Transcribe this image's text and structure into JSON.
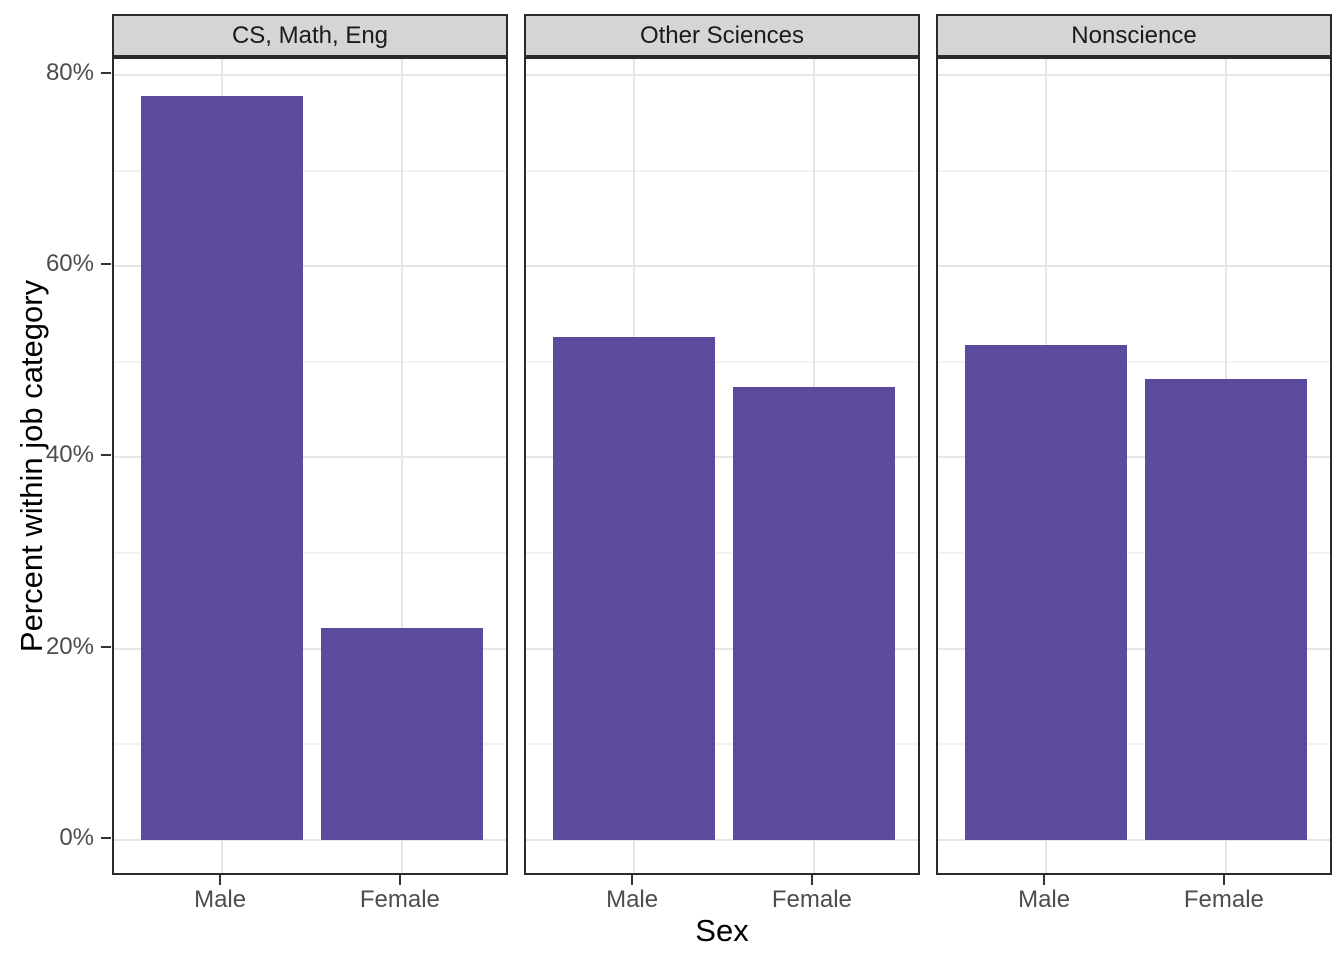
{
  "chart_data": {
    "type": "bar",
    "faceted": true,
    "title": "",
    "facets": [
      {
        "label": "CS, Math, Eng",
        "values": [
          77.8,
          22.2
        ]
      },
      {
        "label": "Other Sciences",
        "values": [
          52.6,
          47.4
        ]
      },
      {
        "label": "Nonscience",
        "values": [
          51.8,
          48.2
        ]
      }
    ],
    "categories": [
      "Male",
      "Female"
    ],
    "xlabel": "Sex",
    "ylabel": "Percent within job category",
    "y_ticks": [
      {
        "value": 0,
        "label": "0%"
      },
      {
        "value": 20,
        "label": "20%"
      },
      {
        "value": 40,
        "label": "40%"
      },
      {
        "value": 60,
        "label": "60%"
      },
      {
        "value": 80,
        "label": "80%"
      }
    ],
    "y_minor_ticks": [
      10,
      30,
      50,
      70
    ],
    "ylim": [
      -3.9,
      81.7
    ],
    "grid": true,
    "legend": "none",
    "style": {
      "bar_fill": "#5C4B9D",
      "strip_fill": "#D5D5D5",
      "strip_text": "#1A1A1A",
      "panel_border": "#2B2B2B",
      "grid_major": "#E6E6E6",
      "grid_minor": "#F2F2F2",
      "tick_label_color": "#4D4D4D",
      "axis_title_color": "#000000",
      "background": "#FFFFFF"
    }
  }
}
